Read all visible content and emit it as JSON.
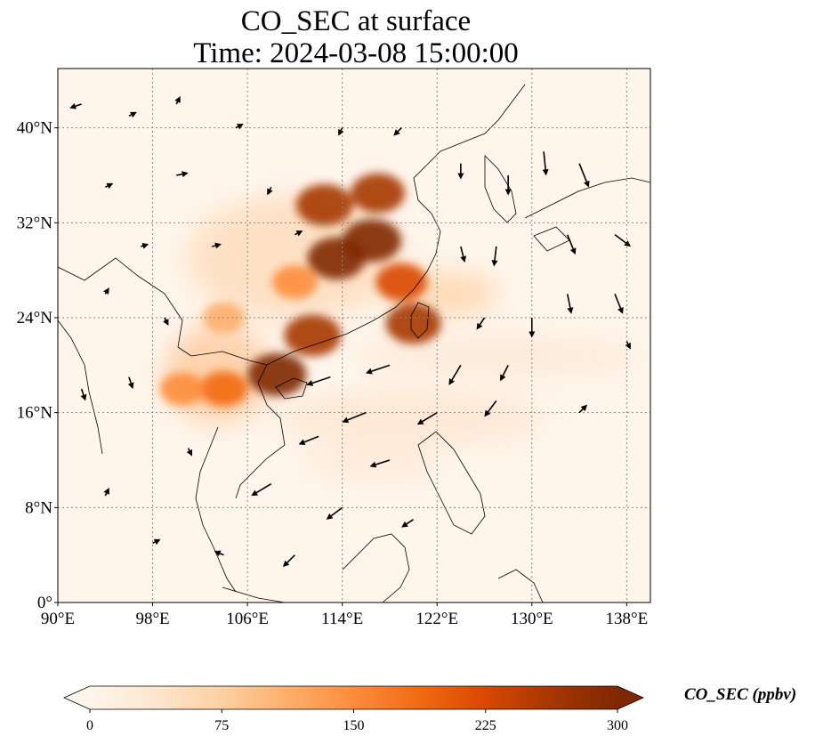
{
  "title": {
    "line1": "CO_SEC at surface",
    "line2": "Time: 2024-03-08 15:00:00"
  },
  "map": {
    "projection": "PlateCarree",
    "lon_range": [
      90,
      140
    ],
    "lat_range": [
      0,
      45
    ],
    "lon_ticks": [
      {
        "value": 90,
        "label": "90°E"
      },
      {
        "value": 98,
        "label": "98°E"
      },
      {
        "value": 106,
        "label": "106°E"
      },
      {
        "value": 114,
        "label": "114°E"
      },
      {
        "value": 122,
        "label": "122°E"
      },
      {
        "value": 130,
        "label": "130°E"
      },
      {
        "value": 138,
        "label": "138°E"
      }
    ],
    "lat_ticks": [
      {
        "value": 0,
        "label": "0°"
      },
      {
        "value": 8,
        "label": "8°N"
      },
      {
        "value": 16,
        "label": "16°N"
      },
      {
        "value": 24,
        "label": "24°N"
      },
      {
        "value": 32,
        "label": "32°N"
      },
      {
        "value": 40,
        "label": "40°N"
      }
    ],
    "gridlines": true,
    "background_color": "#fff5eb",
    "coastline_color": "#000000",
    "high_concentration_regions": [
      {
        "lon": 116.5,
        "lat": 30.5,
        "value": 300
      },
      {
        "lon": 113.5,
        "lat": 29.0,
        "value": 290
      },
      {
        "lon": 112.5,
        "lat": 33.5,
        "value": 280
      },
      {
        "lon": 117.0,
        "lat": 34.5,
        "value": 250
      },
      {
        "lon": 108.5,
        "lat": 19.2,
        "value": 300
      },
      {
        "lon": 111.5,
        "lat": 22.5,
        "value": 280
      },
      {
        "lon": 120.0,
        "lat": 23.5,
        "value": 260
      },
      {
        "lon": 119.0,
        "lat": 27.0,
        "value": 220
      },
      {
        "lon": 104.0,
        "lat": 18.0,
        "value": 180
      },
      {
        "lon": 100.5,
        "lat": 18.0,
        "value": 140
      },
      {
        "lon": 104.0,
        "lat": 24.0,
        "value": 110
      },
      {
        "lon": 110.0,
        "lat": 27.0,
        "value": 150
      }
    ],
    "wind_vectors": [
      {
        "lon": 92,
        "lat": 42,
        "u": -1.5,
        "v": -0.5
      },
      {
        "lon": 96,
        "lat": 41,
        "u": 1,
        "v": 0.5
      },
      {
        "lon": 100,
        "lat": 42,
        "u": 0.5,
        "v": 1
      },
      {
        "lon": 94,
        "lat": 35,
        "u": 1,
        "v": 0.5
      },
      {
        "lon": 100,
        "lat": 36,
        "u": 1.5,
        "v": 0.3
      },
      {
        "lon": 108,
        "lat": 35,
        "u": -0.5,
        "v": -1
      },
      {
        "lon": 114,
        "lat": 40,
        "u": -0.5,
        "v": -1
      },
      {
        "lon": 119,
        "lat": 40,
        "u": -1,
        "v": -1
      },
      {
        "lon": 124,
        "lat": 37,
        "u": 0,
        "v": -2
      },
      {
        "lon": 128,
        "lat": 36,
        "u": 0,
        "v": -2.5
      },
      {
        "lon": 131,
        "lat": 38,
        "u": 0.3,
        "v": -3
      },
      {
        "lon": 134,
        "lat": 37,
        "u": 1.2,
        "v": -3
      },
      {
        "lon": 127,
        "lat": 30,
        "u": -0.3,
        "v": -2.5
      },
      {
        "lon": 133,
        "lat": 31,
        "u": 1,
        "v": -2.5
      },
      {
        "lon": 137,
        "lat": 31,
        "u": 2,
        "v": -1.5
      },
      {
        "lon": 133,
        "lat": 26,
        "u": 0.5,
        "v": -2.5
      },
      {
        "lon": 137,
        "lat": 26,
        "u": 1,
        "v": -2.5
      },
      {
        "lon": 126,
        "lat": 24,
        "u": -1,
        "v": -1.5
      },
      {
        "lon": 130,
        "lat": 24,
        "u": 0,
        "v": -2.5
      },
      {
        "lon": 124,
        "lat": 20,
        "u": -1.5,
        "v": -2.5
      },
      {
        "lon": 128,
        "lat": 20,
        "u": -1,
        "v": -2
      },
      {
        "lon": 118,
        "lat": 20,
        "u": -3,
        "v": -1
      },
      {
        "lon": 113,
        "lat": 19,
        "u": -3,
        "v": -1
      },
      {
        "lon": 116,
        "lat": 16,
        "u": -3,
        "v": -1.2
      },
      {
        "lon": 122,
        "lat": 16,
        "u": -2.5,
        "v": -1.5
      },
      {
        "lon": 127,
        "lat": 17,
        "u": -1.5,
        "v": -2
      },
      {
        "lon": 112,
        "lat": 14,
        "u": -2.5,
        "v": -1
      },
      {
        "lon": 118,
        "lat": 12,
        "u": -2.5,
        "v": -0.8
      },
      {
        "lon": 108,
        "lat": 10,
        "u": -2.5,
        "v": -1.5
      },
      {
        "lon": 114,
        "lat": 8,
        "u": -2,
        "v": -1.5
      },
      {
        "lon": 120,
        "lat": 7,
        "u": -1.5,
        "v": -1
      },
      {
        "lon": 110,
        "lat": 4,
        "u": -1.5,
        "v": -1.5
      },
      {
        "lon": 104,
        "lat": 4,
        "u": -1.2,
        "v": 0.5
      },
      {
        "lon": 98,
        "lat": 5,
        "u": 1,
        "v": 0.5
      },
      {
        "lon": 94,
        "lat": 9,
        "u": 0.5,
        "v": 1
      },
      {
        "lon": 92,
        "lat": 18,
        "u": 0.5,
        "v": -1.5
      },
      {
        "lon": 96,
        "lat": 19,
        "u": 0.5,
        "v": -1.5
      },
      {
        "lon": 99,
        "lat": 24,
        "u": 0.5,
        "v": -1
      },
      {
        "lon": 94,
        "lat": 26,
        "u": 0.5,
        "v": 0.8
      },
      {
        "lon": 103,
        "lat": 30,
        "u": 1.2,
        "v": 0.3
      },
      {
        "lon": 97,
        "lat": 30,
        "u": 1,
        "v": 0.3
      },
      {
        "lon": 105,
        "lat": 40,
        "u": 1,
        "v": 0.5
      },
      {
        "lon": 110,
        "lat": 31,
        "u": 1,
        "v": 0.5
      },
      {
        "lon": 134,
        "lat": 16,
        "u": 1,
        "v": 1
      },
      {
        "lon": 138,
        "lat": 22,
        "u": 0.5,
        "v": -1
      },
      {
        "lon": 101,
        "lat": 13,
        "u": 0.5,
        "v": -1
      },
      {
        "lon": 124,
        "lat": 30,
        "u": 0.5,
        "v": -2
      }
    ]
  },
  "colorbar": {
    "label": "CO_SEC (ppbv)",
    "vmin": 0,
    "vmax": 300,
    "extend": "both",
    "colormap": "OrRd",
    "colors": [
      "#fff5eb",
      "#fee6ce",
      "#fdd0a2",
      "#fdae6b",
      "#fd8d3c",
      "#f16913",
      "#d94801",
      "#a63603",
      "#7f2704"
    ],
    "ticks": [
      {
        "value": 0,
        "label": "0"
      },
      {
        "value": 75,
        "label": "75"
      },
      {
        "value": 150,
        "label": "150"
      },
      {
        "value": 225,
        "label": "225"
      },
      {
        "value": 300,
        "label": "300"
      }
    ]
  }
}
